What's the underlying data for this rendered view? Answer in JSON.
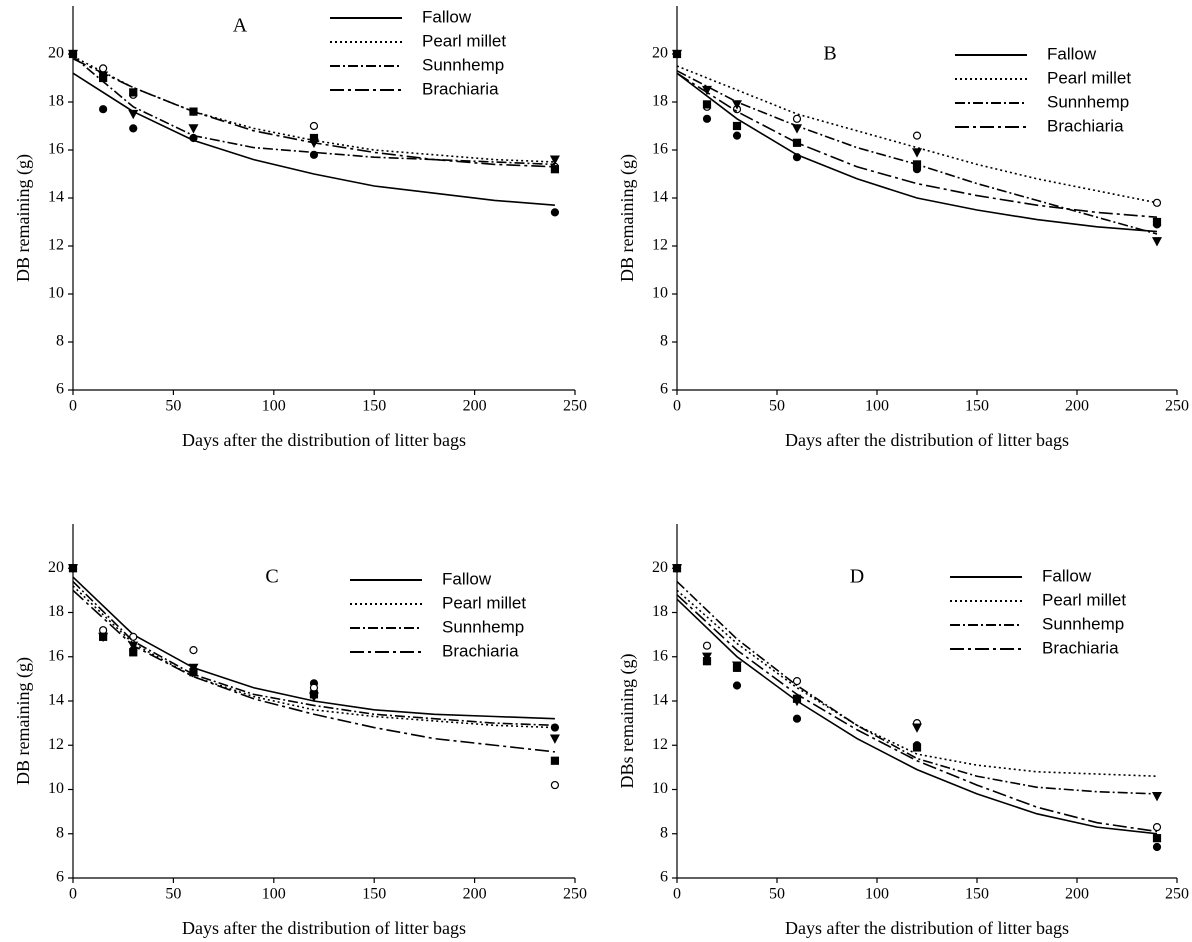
{
  "chart_data": [
    {
      "type": "line",
      "title": "A",
      "xlabel": "Days after the distribution of litter bags",
      "ylabel": "DB remaining (g)",
      "xlim": [
        0,
        250
      ],
      "ylim": [
        6,
        22
      ],
      "xticks": [
        0,
        50,
        100,
        150,
        200,
        250
      ],
      "yticks": [
        6,
        8,
        10,
        12,
        14,
        16,
        18,
        20
      ],
      "legend": "top",
      "x": [
        0,
        30,
        60,
        90,
        120,
        150,
        180,
        210,
        240
      ],
      "obs_x": [
        0,
        15,
        30,
        60,
        120,
        240
      ],
      "series": [
        {
          "name": "Fallow",
          "color": "#000000",
          "dash": "none",
          "marker": "circle",
          "values": [
            19.2,
            17.6,
            16.4,
            15.6,
            15.0,
            14.5,
            14.2,
            13.9,
            13.7
          ],
          "observed": [
            20,
            17.7,
            16.9,
            16.5,
            15.8,
            13.4
          ]
        },
        {
          "name": "Pearl millet",
          "color": "#000000",
          "dash": "2,3",
          "marker": "open-circle",
          "values": [
            19.9,
            18.6,
            17.6,
            16.9,
            16.4,
            16.0,
            15.8,
            15.6,
            15.5
          ],
          "observed": [
            20,
            19.4,
            18.3,
            17.6,
            17.0,
            15.3
          ]
        },
        {
          "name": "Sunnhemp",
          "color": "#000000",
          "dash": "10,3,2,3",
          "marker": "triangle-down",
          "values": [
            19.9,
            17.8,
            16.6,
            16.1,
            15.9,
            15.7,
            15.6,
            15.5,
            15.4
          ],
          "observed": [
            20,
            19.1,
            17.5,
            16.9,
            16.3,
            15.6
          ]
        },
        {
          "name": "Brachiaria",
          "color": "#000000",
          "dash": "14,4,3,4",
          "marker": "square",
          "values": [
            19.8,
            18.6,
            17.6,
            16.8,
            16.3,
            15.9,
            15.6,
            15.4,
            15.3
          ],
          "observed": [
            20,
            19.0,
            18.4,
            17.6,
            16.5,
            15.2
          ]
        }
      ]
    },
    {
      "type": "line",
      "title": "B",
      "xlabel": "Days after the distribution of litter bags",
      "ylabel": "DB remaining (g)",
      "xlim": [
        0,
        250
      ],
      "ylim": [
        6,
        22
      ],
      "xticks": [
        0,
        50,
        100,
        150,
        200,
        250
      ],
      "yticks": [
        6,
        8,
        10,
        12,
        14,
        16,
        18,
        20
      ],
      "legend": "top-right",
      "x": [
        0,
        30,
        60,
        90,
        120,
        150,
        180,
        210,
        240
      ],
      "obs_x": [
        0,
        15,
        30,
        60,
        120,
        240
      ],
      "series": [
        {
          "name": "Fallow",
          "color": "#000000",
          "dash": "none",
          "marker": "circle",
          "values": [
            19.2,
            17.3,
            15.8,
            14.8,
            14.0,
            13.5,
            13.1,
            12.8,
            12.6
          ],
          "observed": [
            20,
            17.3,
            16.6,
            15.7,
            15.2,
            12.9
          ]
        },
        {
          "name": "Pearl millet",
          "color": "#000000",
          "dash": "2,3",
          "marker": "open-circle",
          "values": [
            19.5,
            18.5,
            17.5,
            16.8,
            16.1,
            15.4,
            14.8,
            14.3,
            13.8
          ],
          "observed": [
            20,
            17.8,
            17.7,
            17.3,
            16.6,
            13.8
          ]
        },
        {
          "name": "Sunnhemp",
          "color": "#000000",
          "dash": "10,3,2,3",
          "marker": "triangle-down",
          "values": [
            19.3,
            18.0,
            17.0,
            16.1,
            15.4,
            14.6,
            13.9,
            13.2,
            12.5
          ],
          "observed": [
            20,
            18.5,
            17.9,
            16.9,
            15.9,
            12.2
          ]
        },
        {
          "name": "Brachiaria",
          "color": "#000000",
          "dash": "14,4,3,4",
          "marker": "square",
          "values": [
            19.2,
            17.6,
            16.3,
            15.3,
            14.6,
            14.1,
            13.7,
            13.4,
            13.2
          ],
          "observed": [
            20,
            17.9,
            17.0,
            16.3,
            15.4,
            13.0
          ]
        }
      ]
    },
    {
      "type": "line",
      "title": "C",
      "xlabel": "Days after the distribution of litter bags",
      "ylabel": "DB remaining (g)",
      "xlim": [
        0,
        250
      ],
      "ylim": [
        6,
        22
      ],
      "xticks": [
        0,
        50,
        100,
        150,
        200,
        250
      ],
      "yticks": [
        6,
        8,
        10,
        12,
        14,
        16,
        18,
        20
      ],
      "legend": "right",
      "x": [
        0,
        30,
        60,
        90,
        120,
        150,
        180,
        210,
        240
      ],
      "obs_x": [
        0,
        15,
        30,
        60,
        120,
        240
      ],
      "series": [
        {
          "name": "Fallow",
          "color": "#000000",
          "dash": "none",
          "marker": "circle",
          "values": [
            19.6,
            17.0,
            15.5,
            14.6,
            14.0,
            13.6,
            13.4,
            13.3,
            13.2
          ],
          "observed": [
            20,
            17.0,
            16.3,
            15.4,
            14.8,
            12.8
          ]
        },
        {
          "name": "Pearl millet",
          "color": "#000000",
          "dash": "2,3",
          "marker": "open-circle",
          "values": [
            19.2,
            16.6,
            15.1,
            14.2,
            13.6,
            13.3,
            13.1,
            12.9,
            12.8
          ],
          "observed": [
            20,
            17.2,
            16.9,
            16.3,
            14.6,
            10.2
          ]
        },
        {
          "name": "Sunnhemp",
          "color": "#000000",
          "dash": "10,3,2,3",
          "marker": "triangle-down",
          "values": [
            19.4,
            16.7,
            15.2,
            14.3,
            13.8,
            13.4,
            13.2,
            13.0,
            12.9
          ],
          "observed": [
            20,
            16.9,
            16.5,
            15.5,
            14.2,
            12.3
          ]
        },
        {
          "name": "Brachiaria",
          "color": "#000000",
          "dash": "14,4,3,4",
          "marker": "square",
          "values": [
            19.0,
            16.5,
            15.1,
            14.1,
            13.4,
            12.8,
            12.3,
            12.0,
            11.7
          ],
          "observed": [
            20,
            16.9,
            16.2,
            15.3,
            14.3,
            11.3
          ]
        }
      ]
    },
    {
      "type": "line",
      "title": "D",
      "xlabel": "Days after the distribution of litter bags",
      "ylabel": "DBs remaining (g)",
      "xlim": [
        0,
        250
      ],
      "ylim": [
        6,
        22
      ],
      "xticks": [
        0,
        50,
        100,
        150,
        200,
        250
      ],
      "yticks": [
        6,
        8,
        10,
        12,
        14,
        16,
        18,
        20
      ],
      "legend": "right",
      "x": [
        0,
        30,
        60,
        90,
        120,
        150,
        180,
        210,
        240
      ],
      "obs_x": [
        0,
        15,
        30,
        60,
        120,
        240
      ],
      "series": [
        {
          "name": "Fallow",
          "color": "#000000",
          "dash": "none",
          "marker": "circle",
          "values": [
            18.6,
            16.0,
            14.0,
            12.3,
            10.9,
            9.8,
            8.9,
            8.3,
            8.0
          ],
          "observed": [
            20,
            15.8,
            14.7,
            13.2,
            12.0,
            7.4
          ]
        },
        {
          "name": "Pearl millet",
          "color": "#000000",
          "dash": "2,3",
          "marker": "open-circle",
          "values": [
            19.0,
            16.6,
            14.6,
            12.9,
            11.6,
            11.1,
            10.8,
            10.7,
            10.6
          ],
          "observed": [
            20,
            16.5,
            15.5,
            14.9,
            13.0,
            8.3
          ]
        },
        {
          "name": "Sunnhemp",
          "color": "#000000",
          "dash": "10,3,2,3",
          "marker": "triangle-down",
          "values": [
            19.4,
            16.8,
            14.7,
            12.9,
            11.4,
            10.6,
            10.1,
            9.9,
            9.8
          ],
          "observed": [
            20,
            16.0,
            15.6,
            14.0,
            12.8,
            9.7
          ]
        },
        {
          "name": "Brachiaria",
          "color": "#000000",
          "dash": "14,4,3,4",
          "marker": "square",
          "values": [
            18.8,
            16.3,
            14.3,
            12.7,
            11.3,
            10.2,
            9.2,
            8.5,
            8.1
          ],
          "observed": [
            20,
            15.8,
            15.5,
            14.1,
            11.9,
            7.8
          ]
        }
      ]
    }
  ]
}
